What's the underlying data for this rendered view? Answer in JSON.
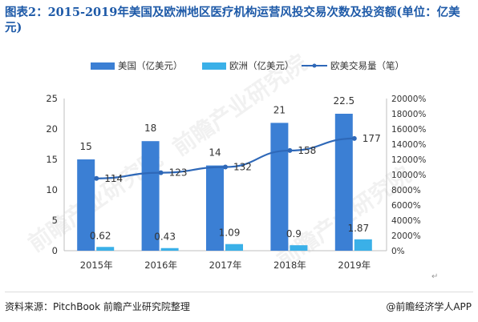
{
  "title": "图表2：2015-2019年美国及欧洲地区医疗机构运营风投交易次数及投资额(单位：亿美元)",
  "footer": {
    "source": "资料来源：PitchBook 前瞻产业研究院整理",
    "brand": "@前瞻经济学人APP"
  },
  "watermarks": [
    "前瞻产业研究院",
    "前瞻产业研究院",
    "前瞻产业研究院"
  ],
  "return_mark": "↵",
  "colors": {
    "us": "#3b7fd4",
    "eu": "#3ab0e8",
    "line": "#2e68b8",
    "axis": "#bfbfbf",
    "text": "#333333"
  },
  "chart_data": {
    "type": "bar",
    "categories": [
      "2015年",
      "2016年",
      "2017年",
      "2018年",
      "2019年"
    ],
    "series": [
      {
        "name": "美国（亿美元）",
        "type": "bar",
        "axis": "left",
        "values": [
          15,
          18,
          14,
          21,
          22.5
        ],
        "labels": [
          "15",
          "18",
          "14",
          "21",
          "22.5"
        ]
      },
      {
        "name": "欧洲（亿美元）",
        "type": "bar",
        "axis": "left",
        "values": [
          0.62,
          0.43,
          1.09,
          0.9,
          1.87
        ],
        "labels": [
          "0.62",
          "0.43",
          "1.09",
          "0.9",
          "1.87"
        ]
      },
      {
        "name": "欧美交易量（笔）",
        "type": "line",
        "axis": "right",
        "values": [
          114,
          123,
          132,
          158,
          177
        ],
        "labels": [
          "114",
          "123",
          "132",
          "158",
          "177"
        ]
      }
    ],
    "left_axis": {
      "min": 0,
      "max": 25,
      "ticks": [
        "0",
        "5",
        "10",
        "15",
        "20",
        "25"
      ]
    },
    "right_axis": {
      "min": 0,
      "max": 20000,
      "ticks": [
        "0%",
        "2000%",
        "4000%",
        "6000%",
        "8000%",
        "10000%",
        "12000%",
        "14000%",
        "16000%",
        "18000%",
        "20000%"
      ]
    },
    "legend_position": "top",
    "grid": false
  }
}
